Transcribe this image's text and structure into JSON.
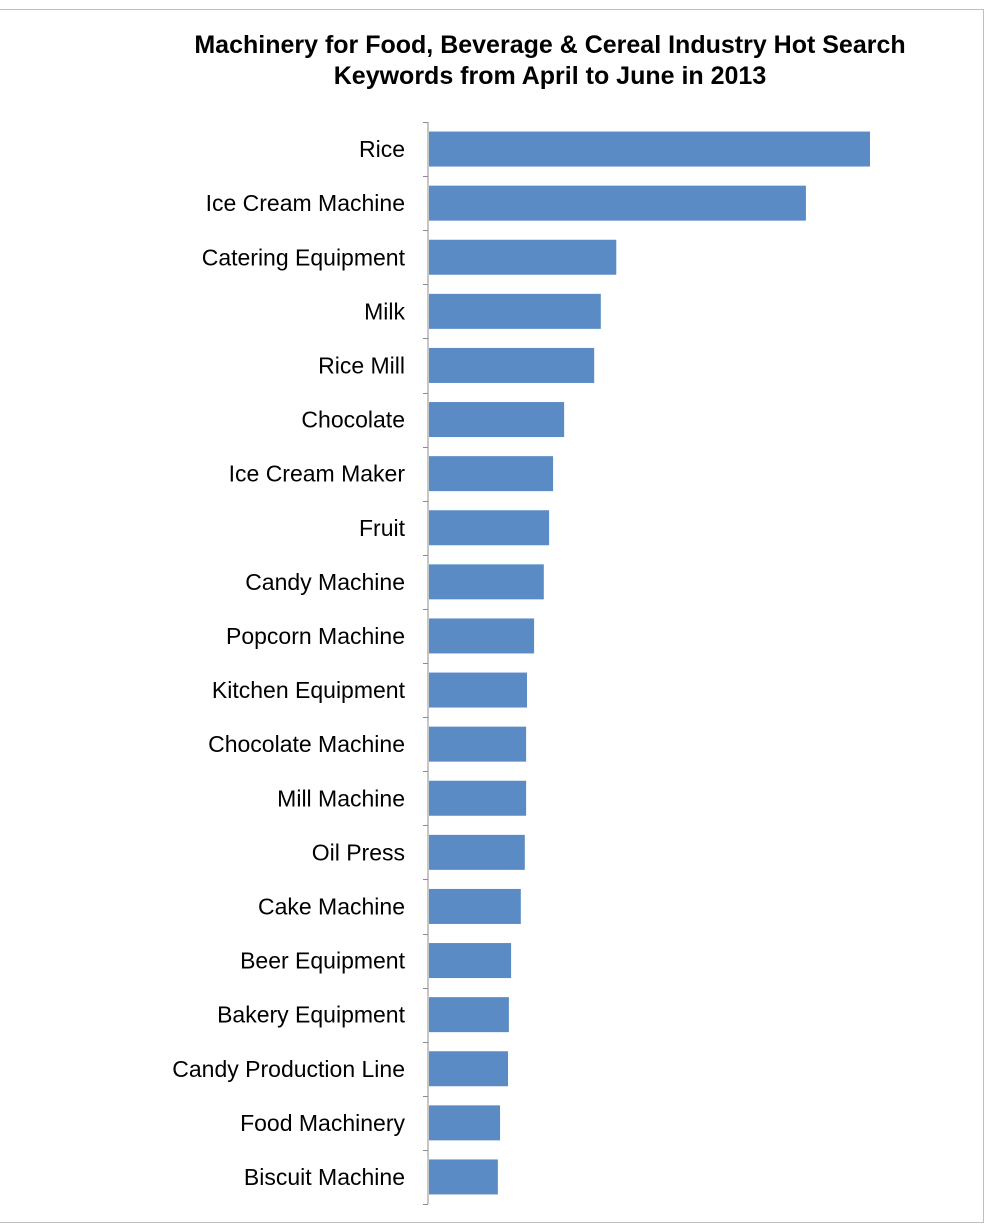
{
  "chart_data": {
    "type": "bar",
    "orientation": "horizontal",
    "title_line1": "Machinery for Food, Beverage & Cereal Industry Hot Search",
    "title_line2": "Keywords from April to June in 2013",
    "xlabel": "",
    "ylabel": "",
    "categories": [
      "Rice",
      "Ice Cream Machine",
      "Catering Equipment",
      "Milk",
      "Rice Mill",
      "Chocolate",
      "Ice Cream Maker",
      "Fruit",
      "Candy Machine",
      "Popcorn Machine",
      "Kitchen Equipment",
      "Chocolate Machine",
      "Mill Machine",
      "Oil Press",
      "Cake Machine",
      "Beer Equipment",
      "Bakery Equipment",
      "Candy Production Line",
      "Food Machinery",
      "Biscuit Machine"
    ],
    "values": [
      100,
      85.5,
      42.6,
      39.1,
      37.6,
      30.8,
      28.3,
      27.4,
      26.2,
      24.0,
      22.4,
      22.2,
      22.2,
      21.9,
      21.0,
      18.8,
      18.3,
      18.1,
      16.3,
      15.8
    ],
    "xlim": [
      0,
      100
    ],
    "gridlines": false,
    "legend": "none",
    "bar_color": "#5b8bc5",
    "axis_color": "#8c8c8c"
  }
}
